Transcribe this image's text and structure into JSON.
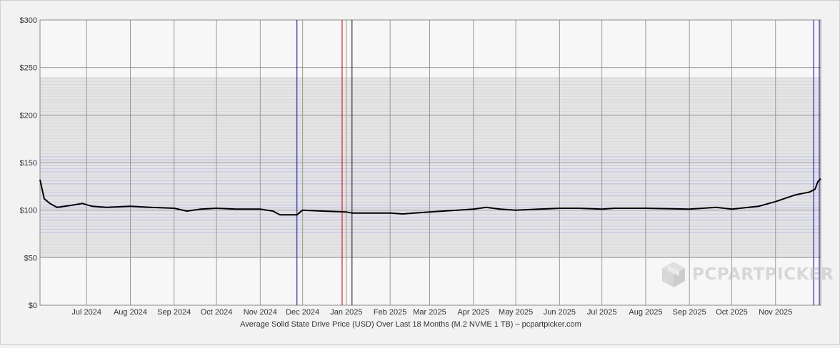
{
  "watermark": {
    "text": "PCPARTPICKER",
    "icon": "box-cube-icon"
  },
  "chart_data": {
    "type": "line",
    "title": "",
    "xlabel": "Average Solid State Drive Price (USD) Over Last 18 Months (M.2 NVME 1 TB) – pcpartpicker.com",
    "ylabel": "",
    "ylim": [
      0,
      300
    ],
    "yticks": [
      0,
      50,
      100,
      150,
      200,
      250,
      300
    ],
    "ytick_labels": [
      "$0",
      "$50",
      "$100",
      "$150",
      "$200",
      "$250",
      "$300"
    ],
    "x_range": [
      "2024-05-29",
      "2025-12-03"
    ],
    "xticks": [
      {
        "date": "2024-07-01",
        "label": "Jul 2024"
      },
      {
        "date": "2024-08-01",
        "label": "Aug 2024"
      },
      {
        "date": "2024-09-01",
        "label": "Sep 2024"
      },
      {
        "date": "2024-10-01",
        "label": "Oct 2024"
      },
      {
        "date": "2024-11-01",
        "label": "Nov 2024"
      },
      {
        "date": "2024-12-01",
        "label": "Dec 2024"
      },
      {
        "date": "2025-01-01",
        "label": "Jan 2025"
      },
      {
        "date": "2025-02-01",
        "label": "Feb 2025"
      },
      {
        "date": "2025-03-01",
        "label": "Mar 2025"
      },
      {
        "date": "2025-04-01",
        "label": "Apr 2025"
      },
      {
        "date": "2025-05-01",
        "label": "May 2025"
      },
      {
        "date": "2025-06-01",
        "label": "Jun 2025"
      },
      {
        "date": "2025-07-01",
        "label": "Jul 2025"
      },
      {
        "date": "2025-08-01",
        "label": "Aug 2025"
      },
      {
        "date": "2025-09-01",
        "label": "Sep 2025"
      },
      {
        "date": "2025-10-01",
        "label": "Oct 2025"
      },
      {
        "date": "2025-11-01",
        "label": "Nov 2025"
      }
    ],
    "grid": true,
    "marker_lines": [
      {
        "date": "2024-11-27",
        "color": "#2a2aa0"
      },
      {
        "date": "2024-12-29",
        "color": "#d02020"
      },
      {
        "date": "2025-01-05",
        "color": "#333333"
      },
      {
        "date": "2025-11-28",
        "color": "#2a2aa0"
      },
      {
        "date": "2025-12-02",
        "color": "#2a2aa0"
      }
    ],
    "price_band": {
      "low": 50,
      "high": 240
    },
    "series": [
      {
        "name": "",
        "color": "#000000",
        "points": [
          [
            "2024-05-29",
            132
          ],
          [
            "2024-06-01",
            112
          ],
          [
            "2024-06-05",
            107
          ],
          [
            "2024-06-10",
            103
          ],
          [
            "2024-06-20",
            105
          ],
          [
            "2024-06-28",
            107
          ],
          [
            "2024-07-05",
            104
          ],
          [
            "2024-07-15",
            103
          ],
          [
            "2024-08-01",
            104
          ],
          [
            "2024-08-15",
            103
          ],
          [
            "2024-09-01",
            102
          ],
          [
            "2024-09-10",
            99
          ],
          [
            "2024-09-20",
            101
          ],
          [
            "2024-10-01",
            102
          ],
          [
            "2024-10-15",
            101
          ],
          [
            "2024-11-01",
            101
          ],
          [
            "2024-11-10",
            99
          ],
          [
            "2024-11-15",
            95
          ],
          [
            "2024-11-27",
            95
          ],
          [
            "2024-12-01",
            100
          ],
          [
            "2024-12-15",
            99
          ],
          [
            "2025-01-01",
            98
          ],
          [
            "2025-01-05",
            97
          ],
          [
            "2025-02-01",
            97
          ],
          [
            "2025-02-10",
            96
          ],
          [
            "2025-02-18",
            97
          ],
          [
            "2025-03-01",
            98
          ],
          [
            "2025-04-01",
            101
          ],
          [
            "2025-04-10",
            103
          ],
          [
            "2025-04-20",
            101
          ],
          [
            "2025-05-01",
            100
          ],
          [
            "2025-06-01",
            102
          ],
          [
            "2025-06-15",
            102
          ],
          [
            "2025-07-01",
            101
          ],
          [
            "2025-07-10",
            102
          ],
          [
            "2025-08-01",
            102
          ],
          [
            "2025-09-01",
            101
          ],
          [
            "2025-09-20",
            103
          ],
          [
            "2025-10-01",
            101
          ],
          [
            "2025-10-20",
            104
          ],
          [
            "2025-11-01",
            109
          ],
          [
            "2025-11-15",
            116
          ],
          [
            "2025-11-25",
            119
          ],
          [
            "2025-11-29",
            122
          ],
          [
            "2025-12-01",
            130
          ],
          [
            "2025-12-03",
            133
          ]
        ]
      }
    ]
  }
}
